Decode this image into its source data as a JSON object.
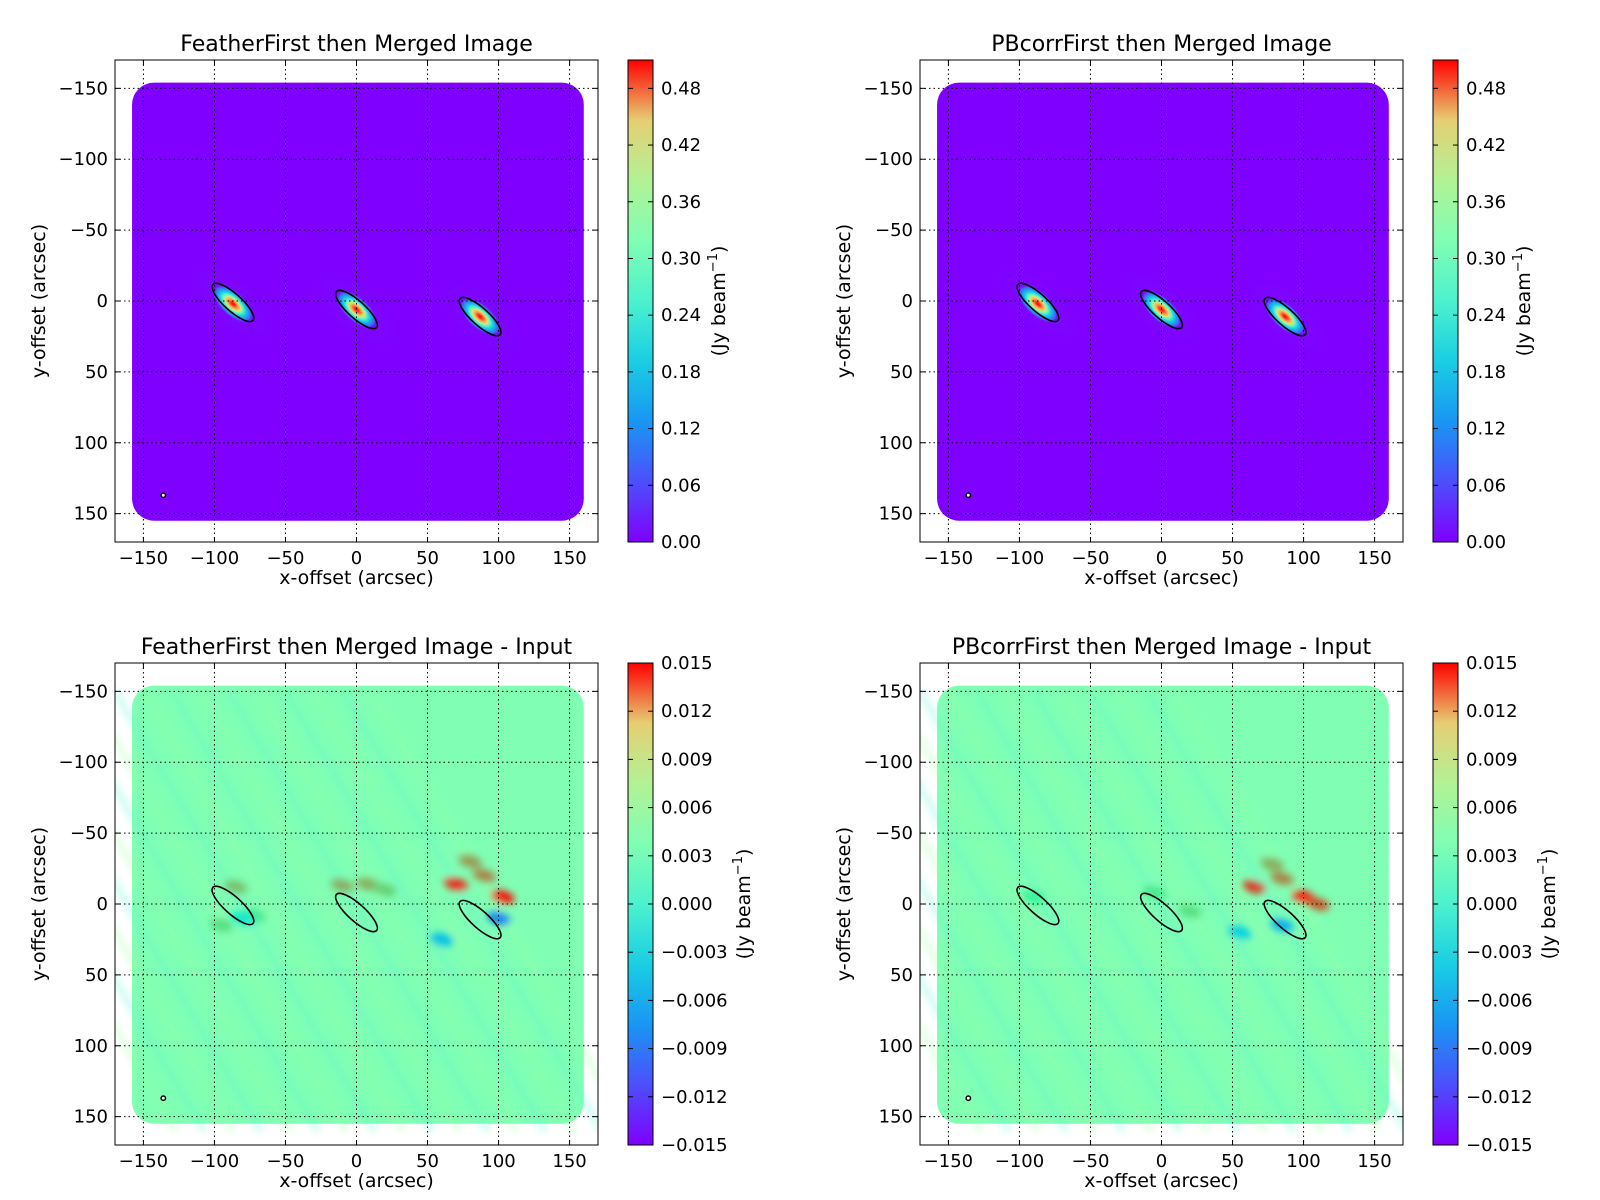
{
  "chart_data": [
    {
      "type": "heatmap",
      "title": "FeatherFirst then Merged Image",
      "xlabel": "x-offset (arcsec)",
      "ylabel": "y-offset (arcsec)",
      "xlim": [
        -170,
        170
      ],
      "ylim": [
        170,
        -170
      ],
      "x_ticks": [
        -150,
        -100,
        -50,
        0,
        50,
        100,
        150
      ],
      "y_ticks": [
        -150,
        -100,
        -50,
        0,
        50,
        100,
        150
      ],
      "grid": true,
      "colormap": "rainbow",
      "colorbar": {
        "label_main": "(Jy beam",
        "label_sup": "−1",
        "label_end": ")",
        "vmin": 0.0,
        "vmax": 0.51,
        "ticks": [
          0.0,
          0.06,
          0.12,
          0.18,
          0.24,
          0.3,
          0.36,
          0.42,
          0.48
        ],
        "tick_labels": [
          "0.00",
          "0.06",
          "0.12",
          "0.18",
          "0.24",
          "0.30",
          "0.36",
          "0.42",
          "0.48"
        ]
      },
      "sources": [
        {
          "x": -87,
          "y": 2,
          "peak": 0.5
        },
        {
          "x": 0,
          "y": 6,
          "peak": 0.5
        },
        {
          "x": 87,
          "y": 11,
          "peak": 0.5
        }
      ],
      "ellipses": [
        {
          "x": -87,
          "y": 1,
          "major": 38,
          "minor": 12,
          "angle_deg": 42
        },
        {
          "x": 0,
          "y": 6,
          "major": 38,
          "minor": 12,
          "angle_deg": 42
        },
        {
          "x": 87,
          "y": 11,
          "major": 38,
          "minor": 12,
          "angle_deg": 42
        }
      ],
      "beam": {
        "x": -136,
        "y": 137,
        "radius": 1.5
      },
      "colors": {
        "background": "#7f00ff",
        "ellipse": "#000000"
      }
    },
    {
      "type": "heatmap",
      "title": "PBcorrFirst then Merged Image",
      "xlabel": "x-offset (arcsec)",
      "ylabel": "y-offset (arcsec)",
      "xlim": [
        -170,
        170
      ],
      "ylim": [
        170,
        -170
      ],
      "x_ticks": [
        -150,
        -100,
        -50,
        0,
        50,
        100,
        150
      ],
      "y_ticks": [
        -150,
        -100,
        -50,
        0,
        50,
        100,
        150
      ],
      "grid": true,
      "colormap": "rainbow",
      "colorbar": {
        "label_main": "(Jy beam",
        "label_sup": "−1",
        "label_end": ")",
        "vmin": 0.0,
        "vmax": 0.51,
        "ticks": [
          0.0,
          0.06,
          0.12,
          0.18,
          0.24,
          0.3,
          0.36,
          0.42,
          0.48
        ],
        "tick_labels": [
          "0.00",
          "0.06",
          "0.12",
          "0.18",
          "0.24",
          "0.30",
          "0.36",
          "0.42",
          "0.48"
        ]
      },
      "sources": [
        {
          "x": -87,
          "y": 2,
          "peak": 0.5
        },
        {
          "x": 0,
          "y": 6,
          "peak": 0.5
        },
        {
          "x": 87,
          "y": 11,
          "peak": 0.5
        }
      ],
      "ellipses": [
        {
          "x": -87,
          "y": 1,
          "major": 38,
          "minor": 12,
          "angle_deg": 42
        },
        {
          "x": 0,
          "y": 6,
          "major": 38,
          "minor": 12,
          "angle_deg": 42
        },
        {
          "x": 87,
          "y": 11,
          "major": 38,
          "minor": 12,
          "angle_deg": 42
        }
      ],
      "beam": {
        "x": -136,
        "y": 137,
        "radius": 1.5
      },
      "colors": {
        "background": "#7f00ff",
        "ellipse": "#000000"
      }
    },
    {
      "type": "heatmap",
      "title": "FeatherFirst then Merged Image - Input",
      "xlabel": "x-offset (arcsec)",
      "ylabel": "y-offset (arcsec)",
      "xlim": [
        -170,
        170
      ],
      "ylim": [
        170,
        -170
      ],
      "x_ticks": [
        -150,
        -100,
        -50,
        0,
        50,
        100,
        150
      ],
      "y_ticks": [
        -150,
        -100,
        -50,
        0,
        50,
        100,
        150
      ],
      "grid": true,
      "colormap": "rainbow",
      "colorbar": {
        "label_main": "(Jy beam",
        "label_sup": "−1",
        "label_end": ")",
        "vmin": -0.015,
        "vmax": 0.015,
        "ticks": [
          -0.015,
          -0.012,
          -0.009,
          -0.006,
          -0.003,
          0.0,
          0.003,
          0.006,
          0.009,
          0.012,
          0.015
        ],
        "tick_labels": [
          "−0.015",
          "−0.012",
          "−0.009",
          "−0.006",
          "−0.003",
          "0.000",
          "0.003",
          "0.006",
          "0.009",
          "0.012",
          "0.015"
        ]
      },
      "residual_features": [
        {
          "x": -85,
          "y": -12,
          "value": 0.007
        },
        {
          "x": -95,
          "y": 15,
          "value": 0.005
        },
        {
          "x": -72,
          "y": 8,
          "value": 0.004
        },
        {
          "x": -10,
          "y": -13,
          "value": 0.008
        },
        {
          "x": 8,
          "y": -14,
          "value": 0.008
        },
        {
          "x": 20,
          "y": -10,
          "value": 0.006
        },
        {
          "x": 70,
          "y": -14,
          "value": 0.014
        },
        {
          "x": 90,
          "y": -20,
          "value": 0.01
        },
        {
          "x": 103,
          "y": -5,
          "value": 0.015
        },
        {
          "x": 80,
          "y": -30,
          "value": 0.009
        },
        {
          "x": 100,
          "y": 10,
          "value": -0.01
        },
        {
          "x": 60,
          "y": 25,
          "value": -0.007
        },
        {
          "x": -80,
          "y": 10,
          "value": -0.004
        }
      ],
      "ellipses": [
        {
          "x": -87,
          "y": 1,
          "major": 38,
          "minor": 12,
          "angle_deg": 42
        },
        {
          "x": 0,
          "y": 6,
          "major": 38,
          "minor": 12,
          "angle_deg": 42
        },
        {
          "x": 87,
          "y": 11,
          "major": 38,
          "minor": 12,
          "angle_deg": 42
        }
      ],
      "beam": {
        "x": -136,
        "y": 137,
        "radius": 1.5
      },
      "colors": {
        "background": "#80ffb4",
        "ellipse": "#000000"
      }
    },
    {
      "type": "heatmap",
      "title": "PBcorrFirst then Merged Image - Input",
      "xlabel": "x-offset (arcsec)",
      "ylabel": "y-offset (arcsec)",
      "xlim": [
        -170,
        170
      ],
      "ylim": [
        170,
        -170
      ],
      "x_ticks": [
        -150,
        -100,
        -50,
        0,
        50,
        100,
        150
      ],
      "y_ticks": [
        -150,
        -100,
        -50,
        0,
        50,
        100,
        150
      ],
      "grid": true,
      "colormap": "rainbow",
      "colorbar": {
        "label_main": "(Jy beam",
        "label_sup": "−1",
        "label_end": ")",
        "vmin": -0.015,
        "vmax": 0.015,
        "ticks": [
          -0.015,
          -0.012,
          -0.009,
          -0.006,
          -0.003,
          0.0,
          0.003,
          0.006,
          0.009,
          0.012,
          0.015
        ],
        "tick_labels": [
          "−0.015",
          "−0.012",
          "−0.009",
          "−0.006",
          "−0.003",
          "0.000",
          "0.003",
          "0.006",
          "0.009",
          "0.012",
          "0.015"
        ]
      },
      "residual_features": [
        {
          "x": -90,
          "y": -5,
          "value": 0.003
        },
        {
          "x": -5,
          "y": -8,
          "value": 0.004
        },
        {
          "x": 20,
          "y": 5,
          "value": 0.005
        },
        {
          "x": 65,
          "y": -12,
          "value": 0.013
        },
        {
          "x": 85,
          "y": -18,
          "value": 0.01
        },
        {
          "x": 100,
          "y": -5,
          "value": 0.015
        },
        {
          "x": 110,
          "y": 0,
          "value": 0.012
        },
        {
          "x": 78,
          "y": -28,
          "value": 0.008
        },
        {
          "x": 85,
          "y": 15,
          "value": -0.008
        },
        {
          "x": 55,
          "y": 20,
          "value": -0.006
        }
      ],
      "ellipses": [
        {
          "x": -87,
          "y": 1,
          "major": 38,
          "minor": 12,
          "angle_deg": 42
        },
        {
          "x": 0,
          "y": 6,
          "major": 38,
          "minor": 12,
          "angle_deg": 42
        },
        {
          "x": 87,
          "y": 11,
          "major": 38,
          "minor": 12,
          "angle_deg": 42
        }
      ],
      "beam": {
        "x": -136,
        "y": 137,
        "radius": 1.5
      },
      "colors": {
        "background": "#80ffb4",
        "ellipse": "#000000"
      }
    }
  ]
}
